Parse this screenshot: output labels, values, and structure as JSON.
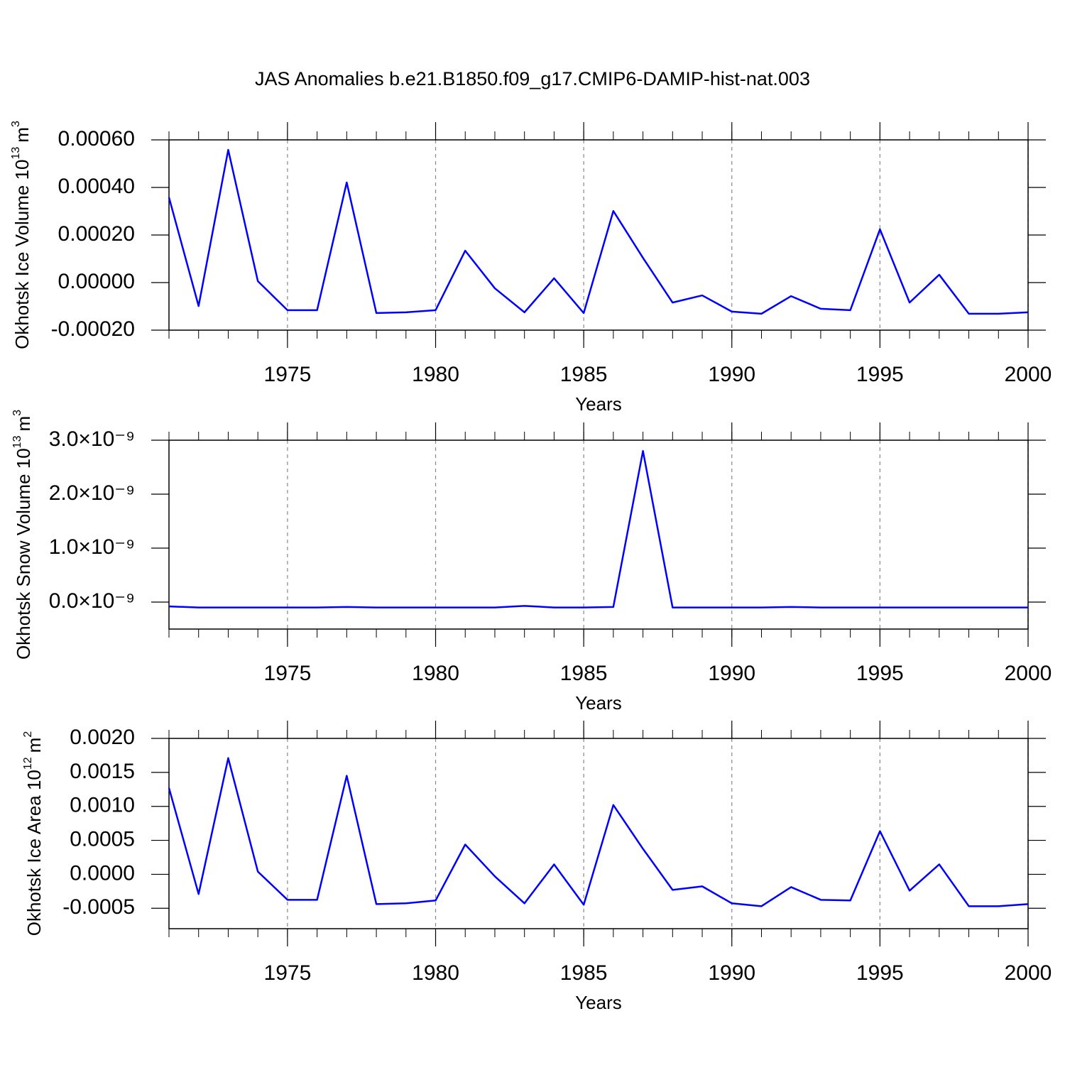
{
  "title": "JAS Anomalies b.e21.B1850.f09_g17.CMIP6-DAMIP-hist-nat.003",
  "chart_data": [
    {
      "type": "line",
      "xlabel": "Years",
      "ylabel": [
        "Okhotsk Ice Volume 10",
        "13",
        "m",
        "3"
      ],
      "x": [
        1971,
        1972,
        1973,
        1974,
        1975,
        1976,
        1977,
        1978,
        1979,
        1980,
        1981,
        1982,
        1983,
        1984,
        1985,
        1986,
        1987,
        1988,
        1989,
        1990,
        1991,
        1992,
        1993,
        1994,
        1995,
        1996,
        1997,
        1998,
        1999,
        2000
      ],
      "series": [
        {
          "name": "Okhotsk Ice Volume",
          "color": "#0000ff",
          "values": [
            0.000358,
            -9.85e-05,
            0.000558,
            6e-06,
            -0.000116,
            -0.000116,
            0.000421,
            -0.000128,
            -0.000125,
            -0.000116,
            0.000134,
            -2.4e-05,
            -0.000125,
            1.8e-05,
            -0.000128,
            0.000301,
            0.000104,
            -8.4e-05,
            -5.4e-05,
            -0.000122,
            -0.000131,
            -5.7e-05,
            -0.00011,
            -0.000116,
            0.000224,
            -8.4e-05,
            3.3e-05,
            -0.000131,
            -0.000131,
            -0.000125
          ]
        }
      ],
      "xlim": [
        1971,
        2000
      ],
      "xticks": [
        1975,
        1980,
        1985,
        1990,
        1995,
        2000
      ],
      "ylim": [
        -0.0002,
        0.0006
      ],
      "yticks": [
        {
          "value": -0.0002,
          "label": "-0.00020"
        },
        {
          "value": 0,
          "label": "0.00000"
        },
        {
          "value": 0.0002,
          "label": "0.00020"
        },
        {
          "value": 0.0004,
          "label": "0.00040"
        },
        {
          "value": 0.0006,
          "label": "0.00060"
        }
      ],
      "grid": "x"
    },
    {
      "type": "line",
      "xlabel": "Years",
      "ylabel": [
        "Okhotsk Snow Volume 10",
        "13",
        "m",
        "3"
      ],
      "x": [
        1971,
        1972,
        1973,
        1974,
        1975,
        1976,
        1977,
        1978,
        1979,
        1980,
        1981,
        1982,
        1983,
        1984,
        1985,
        1986,
        1987,
        1988,
        1989,
        1990,
        1991,
        1992,
        1993,
        1994,
        1995,
        1996,
        1997,
        1998,
        1999,
        2000
      ],
      "series": [
        {
          "name": "Okhotsk Snow Volume",
          "color": "#0000ff",
          "values": [
            -8e-11,
            -1e-10,
            -1e-10,
            -1e-10,
            -1e-10,
            -1e-10,
            -9e-11,
            -1e-10,
            -1e-10,
            -1e-10,
            -1e-10,
            -1e-10,
            -7e-11,
            -1e-10,
            -1e-10,
            -9e-11,
            2.8e-09,
            -1e-10,
            -1e-10,
            -1e-10,
            -1e-10,
            -9e-11,
            -1e-10,
            -1e-10,
            -1e-10,
            -1e-10,
            -1e-10,
            -1e-10,
            -1e-10,
            -1e-10
          ]
        }
      ],
      "xlim": [
        1971,
        2000
      ],
      "xticks": [
        1975,
        1980,
        1985,
        1990,
        1995,
        2000
      ],
      "ylim": [
        -5e-10,
        3e-09
      ],
      "yticks": [
        {
          "value": 0,
          "label": "0.0×10⁻⁹"
        },
        {
          "value": 1e-09,
          "label": "1.0×10⁻⁹"
        },
        {
          "value": 2e-09,
          "label": "2.0×10⁻⁹"
        },
        {
          "value": 3e-09,
          "label": "3.0×10⁻⁹"
        }
      ],
      "grid": "x"
    },
    {
      "type": "line",
      "xlabel": "Years",
      "ylabel": [
        "Okhotsk Ice Area 10",
        "12",
        "m",
        "2"
      ],
      "x": [
        1971,
        1972,
        1973,
        1974,
        1975,
        1976,
        1977,
        1978,
        1979,
        1980,
        1981,
        1982,
        1983,
        1984,
        1985,
        1986,
        1987,
        1988,
        1989,
        1990,
        1991,
        1992,
        1993,
        1994,
        1995,
        1996,
        1997,
        1998,
        1999,
        2000
      ],
      "series": [
        {
          "name": "Okhotsk Ice Area",
          "color": "#0000ff",
          "values": [
            0.00127,
            -0.00029,
            0.00171,
            4e-05,
            -0.000375,
            -0.000375,
            0.00145,
            -0.000438,
            -0.000427,
            -0.000385,
            0.000438,
            -3e-05,
            -0.000427,
            0.000146,
            -0.000448,
            0.00102,
            0.000375,
            -0.000229,
            -0.000177,
            -0.000427,
            -0.000469,
            -0.000188,
            -0.000375,
            -0.000385,
            0.000635,
            -0.00024,
            0.000146,
            -0.000469,
            -0.000469,
            -0.000438
          ]
        }
      ],
      "xlim": [
        1971,
        2000
      ],
      "xticks": [
        1975,
        1980,
        1985,
        1990,
        1995,
        2000
      ],
      "ylim": [
        -0.0008,
        0.002
      ],
      "yticks": [
        {
          "value": -0.0005,
          "label": "-0.0005"
        },
        {
          "value": 0,
          "label": "0.0000"
        },
        {
          "value": 0.0005,
          "label": "0.0005"
        },
        {
          "value": 0.001,
          "label": "0.0010"
        },
        {
          "value": 0.0015,
          "label": "0.0015"
        },
        {
          "value": 0.002,
          "label": "0.0020"
        }
      ],
      "grid": "x"
    }
  ]
}
